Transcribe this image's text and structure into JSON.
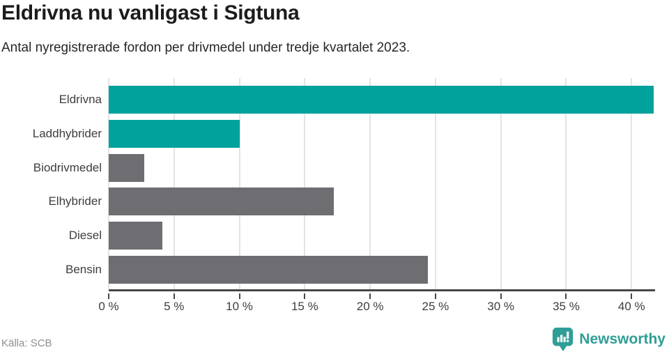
{
  "header": {
    "title": "Eldrivna nu vanligast i Sigtuna",
    "subtitle": "Antal nyregistrerade fordon per drivmedel under tredje kvartalet 2023."
  },
  "footer": {
    "source": "Källa: SCB",
    "brand": "Newsworthy"
  },
  "colors": {
    "bar_teal": "#00A29B",
    "bar_gray": "#6D6D72",
    "logo_teal": "#2F9E96",
    "axis": "#47474B",
    "gridline": "#E3E3E3"
  },
  "chart_data": {
    "type": "bar",
    "orientation": "horizontal",
    "title": "Eldrivna nu vanligast i Sigtuna",
    "subtitle": "Antal nyregistrerade fordon per drivmedel under tredje kvartalet 2023.",
    "categories": [
      "Eldrivna",
      "Laddhybrider",
      "Biodrivmedel",
      "Elhybrider",
      "Diesel",
      "Bensin"
    ],
    "values": [
      41.7,
      10.0,
      2.7,
      17.2,
      4.1,
      24.4
    ],
    "unit": "%",
    "bar_colors": [
      "#00A29B",
      "#00A29B",
      "#6D6D72",
      "#6D6D72",
      "#6D6D72",
      "#6D6D72"
    ],
    "x_ticks": [
      0,
      5,
      10,
      15,
      20,
      25,
      30,
      35,
      40
    ],
    "x_tick_labels": [
      "0 %",
      "5 %",
      "10 %",
      "15 %",
      "20 %",
      "25 %",
      "30 %",
      "35 %",
      "40 %"
    ],
    "xlim": [
      0,
      41.8
    ],
    "grid": "vertical",
    "legend": "none"
  }
}
